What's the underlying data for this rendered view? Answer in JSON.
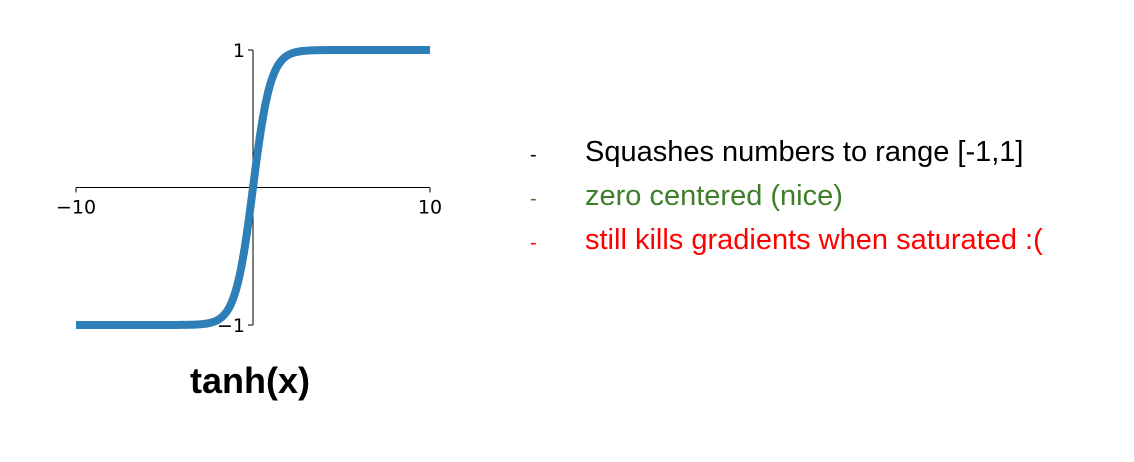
{
  "chart_data": {
    "type": "line",
    "function": "tanh",
    "x_min": -10,
    "x_max": 10,
    "y_min": -1,
    "y_max": 1,
    "x_ticks": [
      {
        "value": -10,
        "label": "−10"
      },
      {
        "value": 10,
        "label": "10"
      }
    ],
    "y_ticks": [
      {
        "value": 1,
        "label": "1"
      },
      {
        "value": -1,
        "label": "−1"
      }
    ],
    "series": [
      {
        "color": "#2e7fb8"
      }
    ],
    "grid": false
  },
  "caption": "tanh(x)",
  "bullets": [
    {
      "dash": "-",
      "text": "Squashes numbers to range [-1,1]",
      "color": "#000000"
    },
    {
      "dash": "-",
      "text": "zero centered (nice)",
      "color": "#3e7e29"
    },
    {
      "dash": "-",
      "text": "still kills gradients when saturated :(",
      "color": "#ff0000"
    }
  ]
}
